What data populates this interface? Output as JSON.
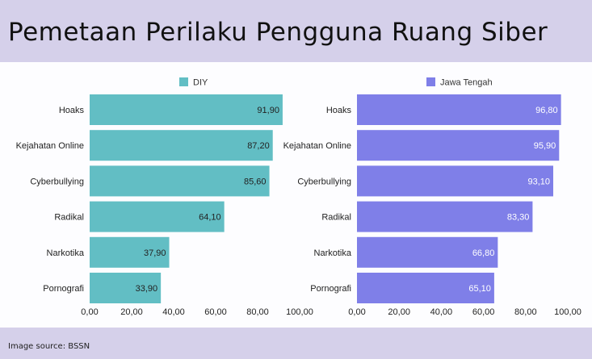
{
  "title": "Pemetaan Perilaku Pengguna Ruang Siber",
  "footer": "Image source: BSSN",
  "chart_data": [
    {
      "type": "bar",
      "orientation": "horizontal",
      "categories": [
        "Hoaks",
        "Kejahatan Online",
        "Cyberbullying",
        "Radikal",
        "Narkotika",
        "Pornografi"
      ],
      "series": [
        {
          "name": "DIY",
          "values": [
            91.9,
            87.2,
            85.6,
            64.1,
            37.9,
            33.9
          ]
        }
      ],
      "value_labels": [
        "91,90",
        "87,20",
        "85,60",
        "64,10",
        "37,90",
        "33,90"
      ],
      "xlim": [
        0,
        100
      ],
      "xticks": [
        "0,00",
        "20,00",
        "40,00",
        "60,00",
        "80,00",
        "100,00"
      ],
      "legend": "top",
      "color": "#62bec4",
      "label_color": "#222222"
    },
    {
      "type": "bar",
      "orientation": "horizontal",
      "categories": [
        "Hoaks",
        "Kejahatan Online",
        "Cyberbullying",
        "Radikal",
        "Narkotika",
        "Pornografi"
      ],
      "series": [
        {
          "name": "Jawa Tengah",
          "values": [
            96.8,
            95.9,
            93.1,
            83.3,
            66.8,
            65.1
          ]
        }
      ],
      "value_labels": [
        "96,80",
        "95,90",
        "93,10",
        "83,30",
        "66,80",
        "65,10"
      ],
      "xlim": [
        0,
        100
      ],
      "xticks": [
        "0,00",
        "20,00",
        "40,00",
        "60,00",
        "80,00",
        "100,00"
      ],
      "legend": "top",
      "color": "#7f7fe8",
      "label_color": "#ffffff"
    }
  ]
}
